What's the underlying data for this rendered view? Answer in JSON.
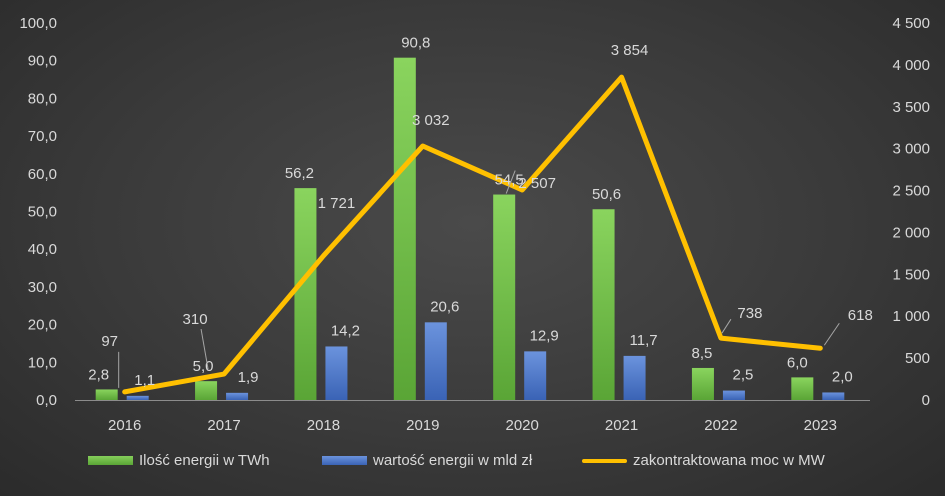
{
  "chart_data": {
    "type": "bar",
    "categories": [
      "2016",
      "2017",
      "2018",
      "2019",
      "2020",
      "2021",
      "2022",
      "2023"
    ],
    "series": [
      {
        "name": "Ilość energii w TWh",
        "type": "bar",
        "axis": "left",
        "color": "#6db544",
        "values": [
          2.8,
          5.0,
          56.2,
          90.8,
          54.5,
          50.6,
          8.5,
          6.0
        ],
        "labels": [
          "2,8",
          "5,0",
          "56,2",
          "90,8",
          "54,5",
          "50,6",
          "8,5",
          "6,0"
        ]
      },
      {
        "name": "wartość energii w mld zł",
        "type": "bar",
        "axis": "left",
        "color": "#4472c4",
        "values": [
          1.1,
          1.9,
          14.2,
          20.6,
          12.9,
          11.7,
          2.5,
          2.0
        ],
        "labels": [
          "1,1",
          "1,9",
          "14,2",
          "20,6",
          "12,9",
          "11,7",
          "2,5",
          "2,0"
        ]
      },
      {
        "name": "zakontraktowana moc w MW",
        "type": "line",
        "axis": "right",
        "color": "#ffc000",
        "values": [
          97,
          310,
          1721,
          3032,
          2507,
          3854,
          738,
          618
        ],
        "labels": [
          "97",
          "310",
          "1 721",
          "3 032",
          "2 507",
          "3 854",
          "738",
          "618"
        ]
      }
    ],
    "y_left": {
      "min": 0,
      "max": 100,
      "step": 10,
      "tick_labels": [
        "0,0",
        "10,0",
        "20,0",
        "30,0",
        "40,0",
        "50,0",
        "60,0",
        "70,0",
        "80,0",
        "90,0",
        "100,0"
      ]
    },
    "y_right": {
      "min": 0,
      "max": 4500,
      "step": 500,
      "tick_labels": [
        "0",
        "500",
        "1 000",
        "1 500",
        "2 000",
        "2 500",
        "3 000",
        "3 500",
        "4 000",
        "4 500"
      ]
    },
    "grid": false,
    "legend": "bottom"
  },
  "colors": {
    "background": "#3a3a3a",
    "text": "#d9d9d9",
    "axis": "#8c8c8c",
    "leader": "#a6a6a6"
  }
}
